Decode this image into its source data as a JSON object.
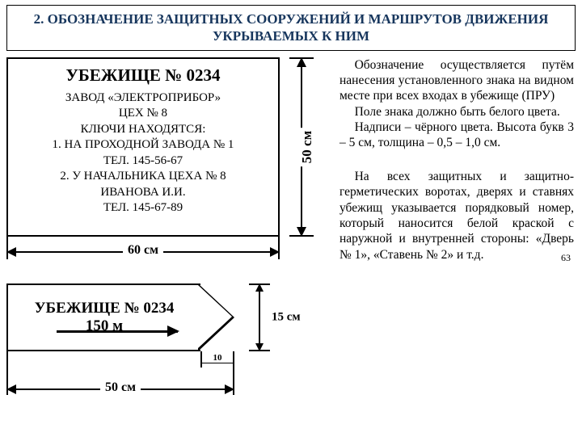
{
  "header": {
    "line1": "2. ОБОЗНАЧЕНИЕ ЗАЩИТНЫХ СООРУЖЕНИЙ И МАРШРУТОВ ДВИЖЕНИЯ",
    "line2": "УКРЫВАЕМЫХ К НИМ"
  },
  "sign": {
    "title": "УБЕЖИЩЕ № 0234",
    "l1": "ЗАВОД «ЭЛЕКТРОПРИБОР»",
    "l2": "ЦЕХ № 8",
    "l3": "КЛЮЧИ НАХОДЯТСЯ:",
    "l4": "1. НА ПРОХОДНОЙ ЗАВОДА № 1",
    "l5": "ТЕЛ. 145-56-67",
    "l6": "2. У НАЧАЛЬНИКА ЦЕХА № 8",
    "l7": "ИВАНОВА И.И.",
    "l8": "ТЕЛ. 145-67-89"
  },
  "dims": {
    "h50": "50 см",
    "w60": "60 см",
    "h15": "15 см",
    "w10": "10",
    "w50": "50 см"
  },
  "dir_sign": {
    "title": "УБЕЖИЩЕ № 0234",
    "distance": "150 м"
  },
  "text": {
    "p1": "Обозначение осуществляется путём нанесения установленного знака на видном месте при всех входах в убежище (ПРУ)",
    "p2": "Поле знака должно быть белого цвета.",
    "p3": "Надписи – чёрного цвета. Высота букв 3 – 5 см, толщина – 0,5 – 1,0 см.",
    "p4": "На всех защитных и защитно-герметических воротах, дверях и ставнях убежищ указывается порядковый номер, который наносится белой краской с наружной и внутренней стороны: «Дверь № 1», «Ставень № 2» и т.д."
  },
  "page": "63",
  "colors": {
    "header_text": "#17365d",
    "border": "#000000",
    "bg": "#ffffff"
  }
}
